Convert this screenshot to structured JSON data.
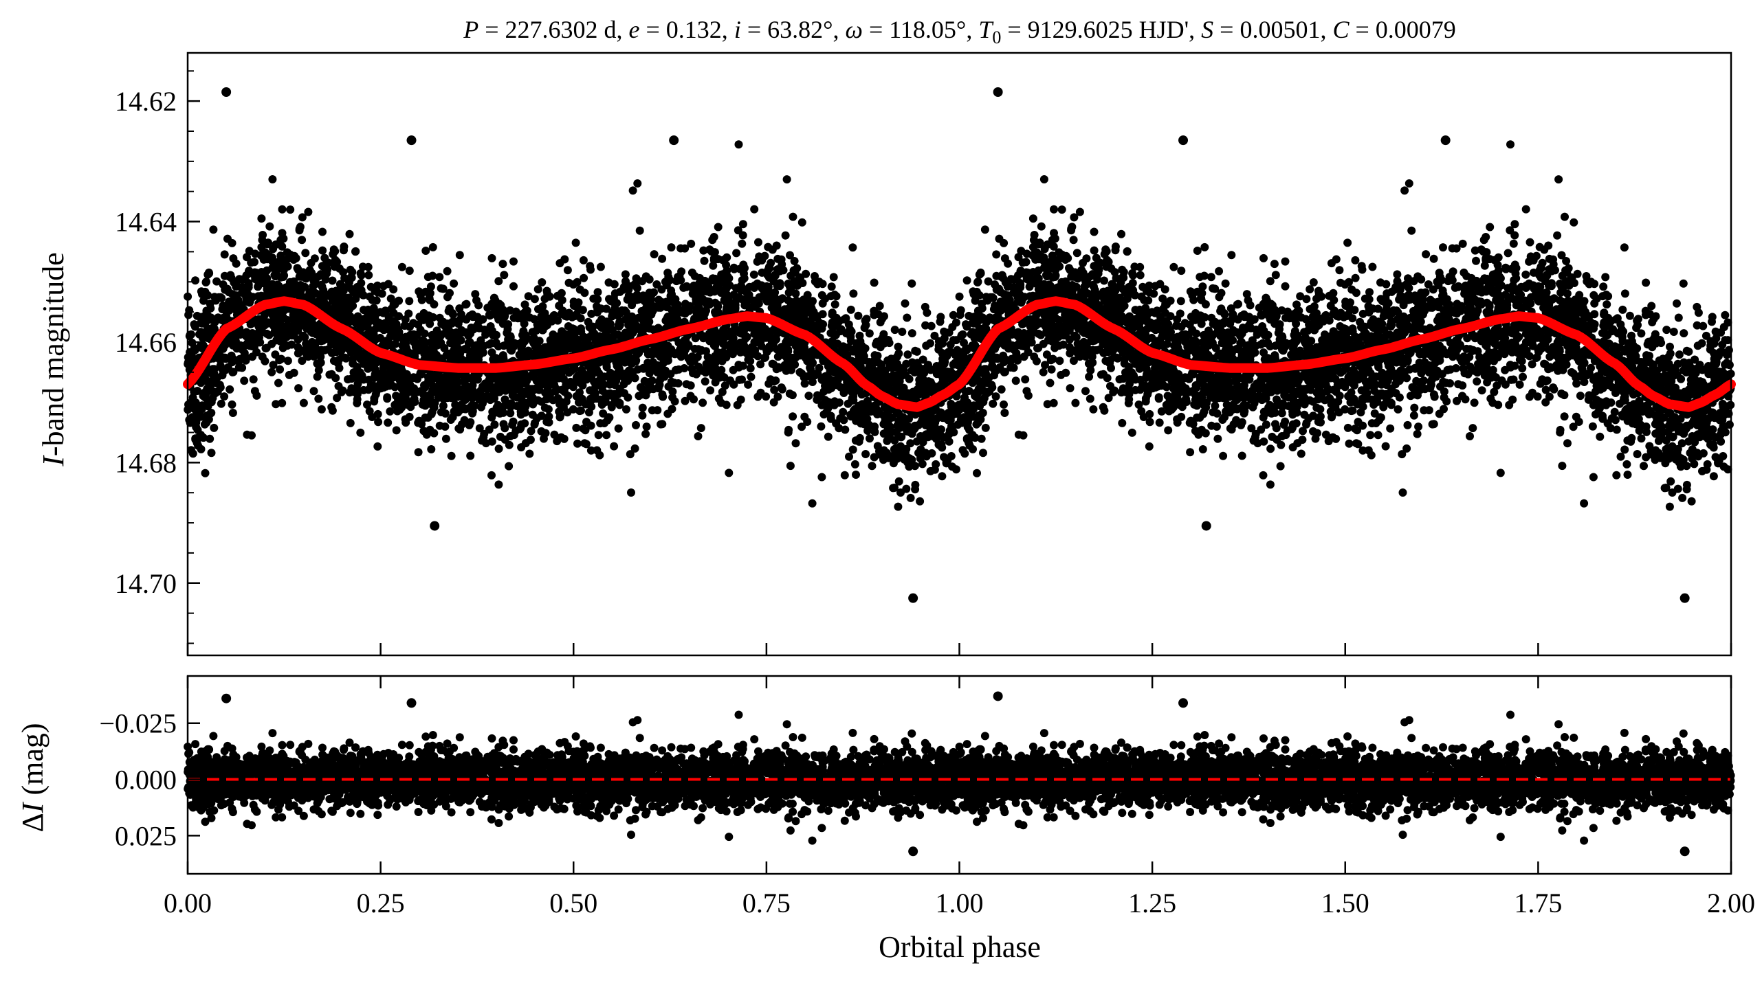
{
  "chart_data": [
    {
      "type": "scatter",
      "panel": "top",
      "title": "P = 227.6302 d, e = 0.132, i = 63.82°, ω = 118.05°, T0 = 9129.6025 HJD', S = 0.00501, C = 0.00079",
      "xlabel": "",
      "ylabel": "I-band magnitude",
      "xlim": [
        0,
        2
      ],
      "ylim": [
        14.712,
        14.612
      ],
      "y_inverted": true,
      "yticks": [
        "14.62",
        "14.64",
        "14.66",
        "14.68",
        "14.70"
      ],
      "ytick_values": [
        14.62,
        14.64,
        14.66,
        14.68,
        14.7
      ],
      "xticks": [
        0,
        0.25,
        0.5,
        0.75,
        1.0,
        1.25,
        1.5,
        1.75,
        2.0
      ],
      "grid": false,
      "legend": "none",
      "colors": {
        "points": "#000000",
        "model": "#ff0000"
      },
      "series": [
        {
          "kind": "scatter-points",
          "description_of_cloud": "dense observations, scatter about model ~±0.012 mag",
          "outliers": [
            {
              "x": 0.05,
              "y": 14.6185
            },
            {
              "x": 0.29,
              "y": 14.6265
            },
            {
              "x": 0.32,
              "y": 14.6905
            },
            {
              "x": 0.63,
              "y": 14.6265
            },
            {
              "x": 0.94,
              "y": 14.7025
            },
            {
              "x": 1.05,
              "y": 14.6185
            },
            {
              "x": 1.29,
              "y": 14.6265
            },
            {
              "x": 1.32,
              "y": 14.6905
            },
            {
              "x": 1.63,
              "y": 14.6265
            },
            {
              "x": 1.94,
              "y": 14.7025
            }
          ]
        },
        {
          "kind": "model-curve",
          "x": [
            0.0,
            0.05,
            0.1,
            0.125,
            0.15,
            0.2,
            0.25,
            0.3,
            0.35,
            0.38,
            0.4,
            0.45,
            0.5,
            0.55,
            0.6,
            0.65,
            0.7,
            0.725,
            0.75,
            0.8,
            0.85,
            0.88,
            0.9,
            0.92,
            0.945,
            0.96,
            0.98,
            1.0,
            1.05,
            1.1,
            1.125,
            1.15,
            1.2,
            1.25,
            1.3,
            1.35,
            1.38,
            1.4,
            1.45,
            1.5,
            1.55,
            1.6,
            1.65,
            1.7,
            1.725,
            1.75,
            1.8,
            1.85,
            1.88,
            1.9,
            1.92,
            1.945,
            1.96,
            1.98,
            2.0
          ],
          "y": [
            14.667,
            14.6578,
            14.6538,
            14.6532,
            14.6538,
            14.6578,
            14.6618,
            14.6638,
            14.6643,
            14.6643,
            14.6643,
            14.6637,
            14.6627,
            14.6612,
            14.6595,
            14.6578,
            14.6562,
            14.6557,
            14.656,
            14.6588,
            14.6636,
            14.6672,
            14.669,
            14.6703,
            14.6708,
            14.6701,
            14.6687,
            14.667,
            14.6578,
            14.6538,
            14.6532,
            14.6538,
            14.6578,
            14.6618,
            14.6638,
            14.6643,
            14.6643,
            14.6643,
            14.6637,
            14.6627,
            14.6612,
            14.6595,
            14.6578,
            14.6562,
            14.6557,
            14.656,
            14.6588,
            14.6636,
            14.6672,
            14.669,
            14.6703,
            14.6708,
            14.6701,
            14.6687,
            14.667
          ]
        }
      ]
    },
    {
      "type": "scatter",
      "panel": "bottom",
      "title": "",
      "xlabel": "Orbital phase",
      "ylabel": "ΔI (mag)",
      "xlim": [
        0,
        2
      ],
      "ylim": [
        0.042,
        -0.046
      ],
      "y_inverted": true,
      "yticks": [
        "−0.025",
        "0.000",
        "0.025"
      ],
      "ytick_values": [
        -0.025,
        0.0,
        0.025
      ],
      "xticks": [
        "0.00",
        "0.25",
        "0.50",
        "0.75",
        "1.00",
        "1.25",
        "1.50",
        "1.75",
        "2.00"
      ],
      "xtick_values": [
        0,
        0.25,
        0.5,
        0.75,
        1.0,
        1.25,
        1.5,
        1.75,
        2.0
      ],
      "grid": false,
      "legend": "none",
      "colors": {
        "points": "#000000",
        "zero_line": "#ff0000"
      },
      "series": [
        {
          "kind": "residual-points",
          "description_of_cloud": "residuals scattered about 0 with ~±0.015 mag spread",
          "outliers": [
            {
              "x": 0.05,
              "y": -0.036
            },
            {
              "x": 0.29,
              "y": -0.034
            },
            {
              "x": 0.94,
              "y": 0.032
            },
            {
              "x": 1.05,
              "y": -0.037
            },
            {
              "x": 1.29,
              "y": -0.034
            },
            {
              "x": 1.94,
              "y": 0.032
            }
          ]
        },
        {
          "kind": "reference-line",
          "y": 0.0,
          "style": "dashed"
        }
      ]
    }
  ],
  "title_parts": {
    "P_sym": "P",
    "P_val": " = 227.6302 d, ",
    "e_sym": "e",
    "e_val": " = 0.132, ",
    "i_sym": "i",
    "i_val": " = 63.82°, ",
    "w_sym": "ω",
    "w_val": " = 118.05°, ",
    "T_sym": "T",
    "T_sub": "0",
    "T_val": " = 9129.6025 HJD', ",
    "S_sym": "S",
    "S_val": " = 0.00501, ",
    "C_sym": "C",
    "C_val": " = 0.00079"
  },
  "top_ylabel_parts": {
    "sym": "I",
    "rest": "-band magnitude"
  },
  "bottom_ylabel_parts": {
    "delta": "Δ",
    "sym": "I",
    "rest": " (mag)"
  },
  "xlabel": "Orbital phase"
}
